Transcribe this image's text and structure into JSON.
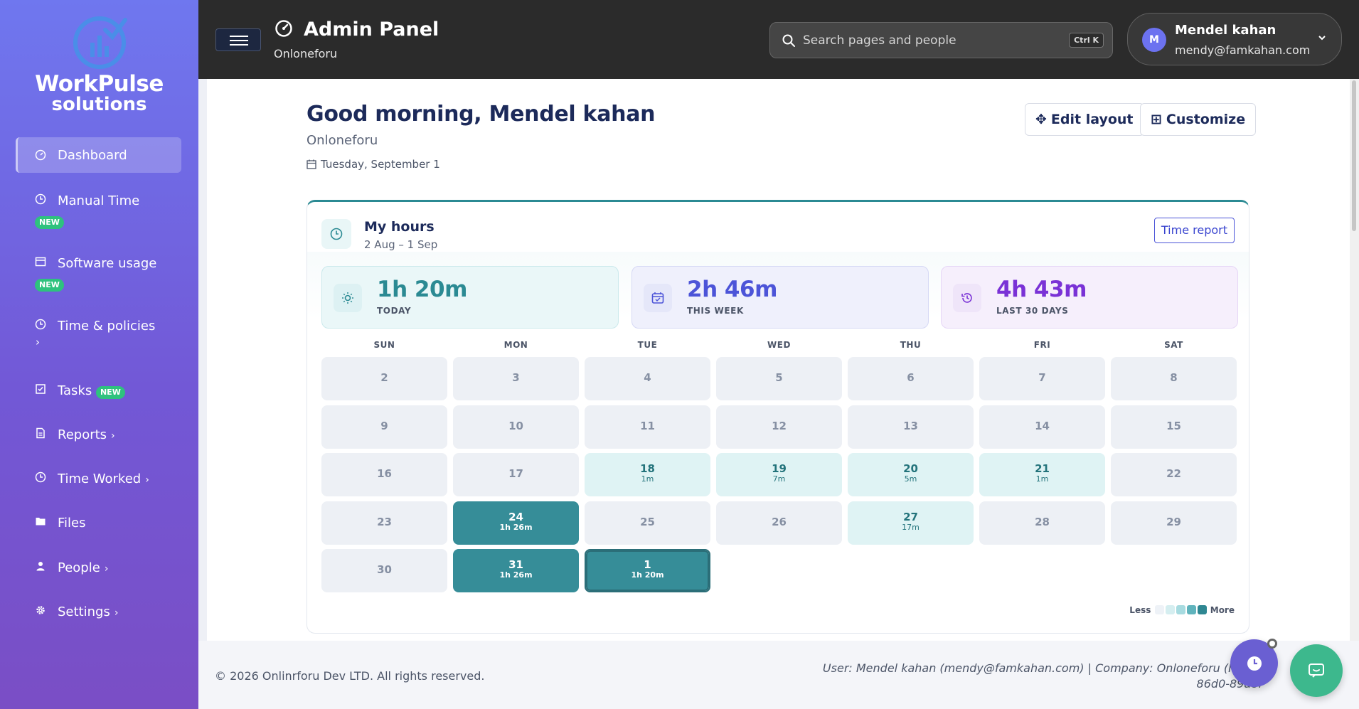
{
  "sidebar": {
    "brand_line1": "WorkPulse",
    "brand_line2": "solutions",
    "items": [
      {
        "label": "Dashboard",
        "icon": "speedometer-icon",
        "active": true
      },
      {
        "label": "Manual Time",
        "icon": "clock-icon",
        "badge": "NEW"
      },
      {
        "label": "Software usage",
        "icon": "window-icon",
        "badge": "NEW"
      },
      {
        "label": "Time & policies",
        "icon": "clock-icon",
        "chevron": "›"
      },
      {
        "label": "Tasks",
        "icon": "checkbox-icon",
        "badge": "NEW"
      },
      {
        "label": "Reports",
        "icon": "document-icon",
        "chevron": "›"
      },
      {
        "label": "Time Worked",
        "icon": "clock-icon",
        "chevron": "›"
      },
      {
        "label": "Files",
        "icon": "folder-icon"
      },
      {
        "label": "People",
        "icon": "person-icon",
        "chevron": "›"
      },
      {
        "label": "Settings",
        "icon": "gear-icon",
        "chevron": "›"
      }
    ]
  },
  "header": {
    "title": "Admin Panel",
    "subtitle": "Onloneforu",
    "search_placeholder": "Search pages and people",
    "search_shortcut": "Ctrl K",
    "user": {
      "initial": "M",
      "name": "Mendel kahan",
      "email": "mendy@famkahan.com"
    }
  },
  "main": {
    "greeting": "Good morning, Mendel kahan",
    "org": "Onloneforu",
    "date": "Tuesday, September 1",
    "edit_layout": "Edit layout",
    "customize": "Customize"
  },
  "hours_card": {
    "title": "My hours",
    "range": "2 Aug – 1 Sep",
    "time_report": "Time report",
    "stats": [
      {
        "value": "1h 20m",
        "caption": "TODAY",
        "color": "#2b8a93",
        "bg": "#eaf7f8",
        "border": "#cbe9ec",
        "icon": "sun-icon"
      },
      {
        "value": "2h 46m",
        "caption": "THIS WEEK",
        "color": "#4c54d8",
        "bg": "#eff0fc",
        "border": "#d6d9f5",
        "icon": "calendar-icon"
      },
      {
        "value": "4h 43m",
        "caption": "LAST 30 DAYS",
        "color": "#7a32d6",
        "bg": "#f6effc",
        "border": "#e6d7f6",
        "icon": "history-icon"
      }
    ],
    "weekdays": [
      "SUN",
      "MON",
      "TUE",
      "WED",
      "THU",
      "FRI",
      "SAT"
    ],
    "days": [
      {
        "d": "2"
      },
      {
        "d": "3"
      },
      {
        "d": "4"
      },
      {
        "d": "5"
      },
      {
        "d": "6"
      },
      {
        "d": "7"
      },
      {
        "d": "8"
      },
      {
        "d": "9"
      },
      {
        "d": "10"
      },
      {
        "d": "11"
      },
      {
        "d": "12"
      },
      {
        "d": "13"
      },
      {
        "d": "14"
      },
      {
        "d": "15"
      },
      {
        "d": "16"
      },
      {
        "d": "17"
      },
      {
        "d": "18",
        "h": "1m",
        "level": "light"
      },
      {
        "d": "19",
        "h": "7m",
        "level": "light"
      },
      {
        "d": "20",
        "h": "5m",
        "level": "light"
      },
      {
        "d": "21",
        "h": "1m",
        "level": "light"
      },
      {
        "d": "22"
      },
      {
        "d": "23"
      },
      {
        "d": "24",
        "h": "1h 26m",
        "level": "dark"
      },
      {
        "d": "25"
      },
      {
        "d": "26"
      },
      {
        "d": "27",
        "h": "17m",
        "level": "light"
      },
      {
        "d": "28"
      },
      {
        "d": "29"
      },
      {
        "d": "30"
      },
      {
        "d": "31",
        "h": "1h 26m",
        "level": "dark"
      },
      {
        "d": "1",
        "h": "1h 20m",
        "level": "dark",
        "today": true
      }
    ],
    "legend_less": "Less",
    "legend_more": "More",
    "legend_colors": [
      "#eef2f7",
      "#d5eef0",
      "#a7dbe0",
      "#5fb3bc",
      "#2f8792"
    ]
  },
  "footer": {
    "copyright": "© 2026 Onlinrforu Dev LTD. All rights reserved.",
    "info_line1": "User: Mendel kahan (mendy@famkahan.com) | Company: Onloneforu (ID: 01",
    "info_line2": "86d0-89a8f"
  }
}
